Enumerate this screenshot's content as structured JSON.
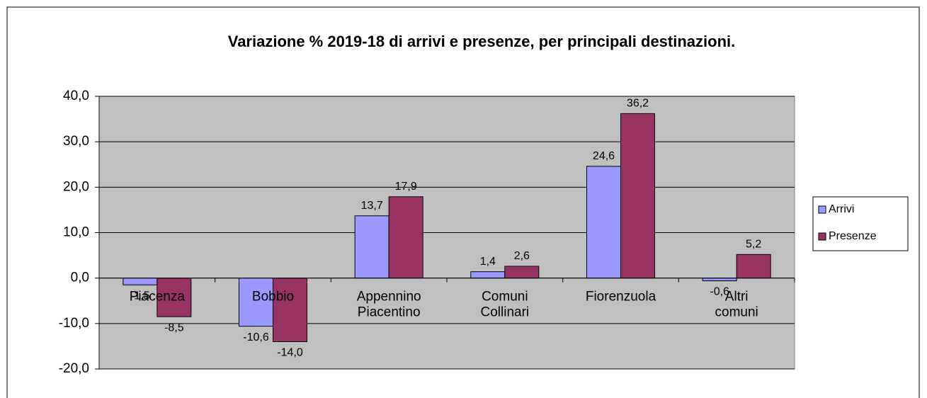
{
  "chart_data": {
    "type": "bar",
    "title": "Variazione % 2019-18 di arrivi e presenze, per principali destinazioni.",
    "categories": [
      "Piacenza",
      "Bobbio",
      "Appennino Piacentino",
      "Comuni Collinari",
      "Fiorenzuola",
      "Altri comuni"
    ],
    "series": [
      {
        "name": "Arrivi",
        "color": "#9999ff",
        "values": [
          -1.5,
          -10.6,
          13.7,
          1.4,
          24.6,
          -0.6
        ],
        "value_labels": [
          "-1,5",
          "-10,6",
          "13,7",
          "1,4",
          "24,6",
          "-0,6"
        ]
      },
      {
        "name": "Presenze",
        "color": "#993366",
        "values": [
          -8.5,
          -14.0,
          17.9,
          2.6,
          36.2,
          5.2
        ],
        "value_labels": [
          "-8,5",
          "-14,0",
          "17,9",
          "2,6",
          "36,2",
          "5,2"
        ]
      }
    ],
    "ylim": [
      -20,
      40
    ],
    "yticks": [
      {
        "value": -20,
        "label": "-20,0"
      },
      {
        "value": -10,
        "label": "-10,0"
      },
      {
        "value": 0,
        "label": "0,0"
      },
      {
        "value": 10,
        "label": "10,0"
      },
      {
        "value": 20,
        "label": "20,0"
      },
      {
        "value": 30,
        "label": "30,0"
      },
      {
        "value": 40,
        "label": "40,0"
      }
    ],
    "grid": true,
    "legend": "right",
    "plot_background": "#c0c0c0"
  }
}
